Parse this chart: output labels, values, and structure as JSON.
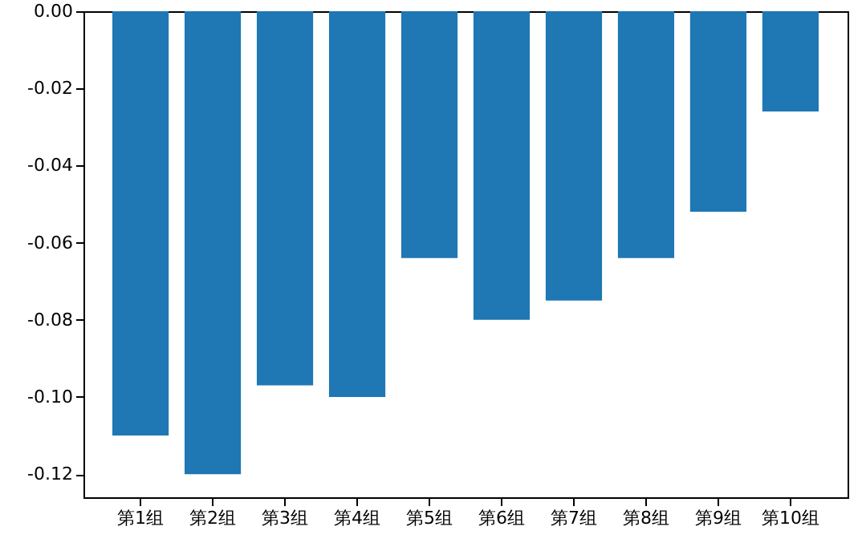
{
  "chart_data": {
    "type": "bar",
    "categories": [
      "第1组",
      "第2组",
      "第3组",
      "第4组",
      "第5组",
      "第6组",
      "第7组",
      "第8组",
      "第9组",
      "第10组"
    ],
    "values": [
      -0.11,
      -0.12,
      -0.097,
      -0.1,
      -0.064,
      -0.08,
      -0.075,
      -0.064,
      -0.052,
      -0.026
    ],
    "color": "#1f77b4",
    "ylim": [
      -0.126,
      0
    ],
    "yticks": [
      {
        "value": 0,
        "label": "0.00"
      },
      {
        "value": -0.02,
        "label": "-0.02"
      },
      {
        "value": -0.04,
        "label": "-0.04"
      },
      {
        "value": -0.06,
        "label": "-0.06"
      },
      {
        "value": -0.08,
        "label": "-0.08"
      },
      {
        "value": -0.1,
        "label": "-0.10"
      },
      {
        "value": -0.12,
        "label": "-0.12"
      }
    ],
    "grid": false
  }
}
